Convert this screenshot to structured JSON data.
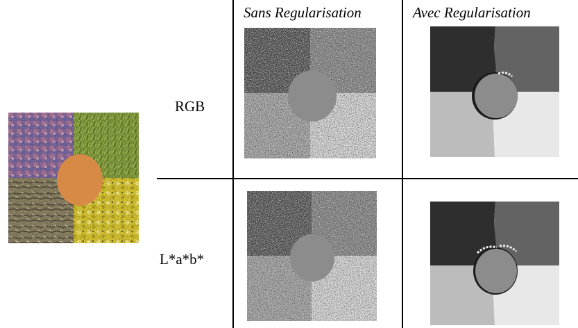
{
  "figure": {
    "columns": {
      "without_reg": "Sans Regularisation",
      "with_reg": "Avec Regularisation"
    },
    "rows": {
      "rgb": "RGB",
      "lab": "L*a*b*"
    },
    "colors": {
      "segment_dark": "#2e2e2e",
      "segment_mid_dark": "#636363",
      "segment_light": "#bcbcbc",
      "segment_lightest": "#e8e8e8",
      "segment_disk": "#8c8c8c",
      "disk_orange": "#d68a45"
    },
    "input_image_textures": [
      "pink-pattern",
      "grass",
      "rock",
      "yellow-flowers",
      "orange-wood-disk"
    ]
  }
}
